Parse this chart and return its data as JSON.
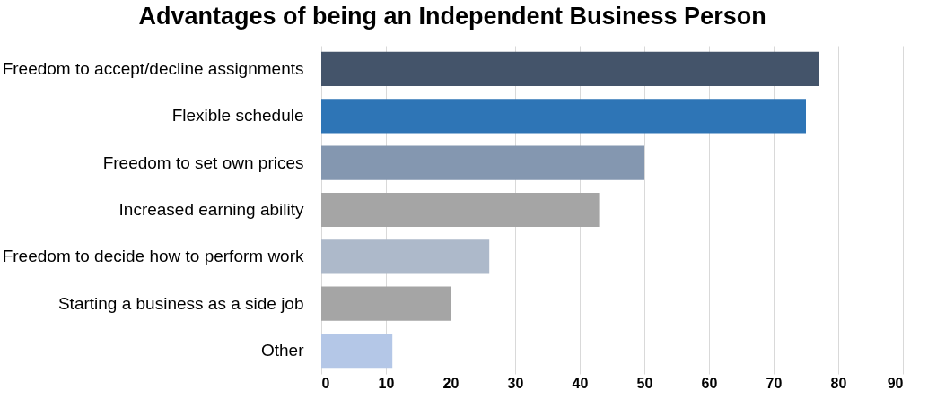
{
  "chart_data": {
    "type": "bar",
    "orientation": "horizontal",
    "title": "Advantages of being an Independent Business Person",
    "categories": [
      "Freedom to accept/decline assignments",
      "Flexible schedule",
      "Freedom to set own prices",
      "Increased earning ability",
      "Freedom to decide how to perform work",
      "Starting a business as a side job",
      "Other"
    ],
    "values": [
      77,
      75,
      50,
      43,
      26,
      20,
      11
    ],
    "colors": [
      "#44546a",
      "#2e75b6",
      "#8497b0",
      "#a5a5a5",
      "#adb9ca",
      "#a5a5a5",
      "#b4c7e7"
    ],
    "xlim": [
      0,
      90
    ],
    "xticks": [
      0,
      10,
      20,
      30,
      40,
      50,
      60,
      70,
      80,
      90
    ],
    "grid": "x"
  }
}
